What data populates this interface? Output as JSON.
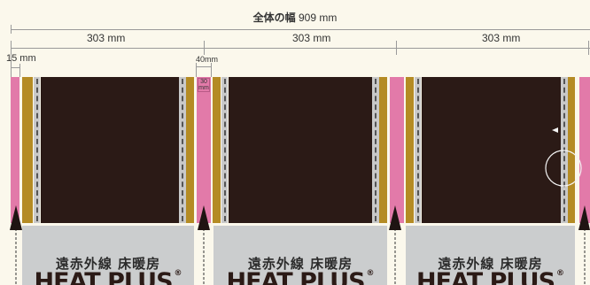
{
  "title": {
    "label": "全体の幅",
    "value": "909 mm"
  },
  "segments": [
    "303 mm",
    "303 mm",
    "303 mm"
  ],
  "dims": {
    "edge": "15 mm",
    "gap": "40mm",
    "gap_inner": "30 mm"
  },
  "panels": [
    {
      "label": "遠赤外線 床暖房",
      "logo": "HEAT PLUS",
      "reg": "®"
    },
    {
      "label": "遠赤外線 床暖房",
      "logo": "HEAT PLUS",
      "reg": "®"
    },
    {
      "label": "遠赤外線 床暖房",
      "logo": "HEAT PLUS",
      "reg": "®"
    }
  ],
  "colors": {
    "background": "#fbf8ec",
    "pink": "#e27aa9",
    "gold": "#b48b24",
    "dashed_strip": "#c9c9c9",
    "panel": "#2b1a16",
    "label_box": "#cbcdce"
  }
}
